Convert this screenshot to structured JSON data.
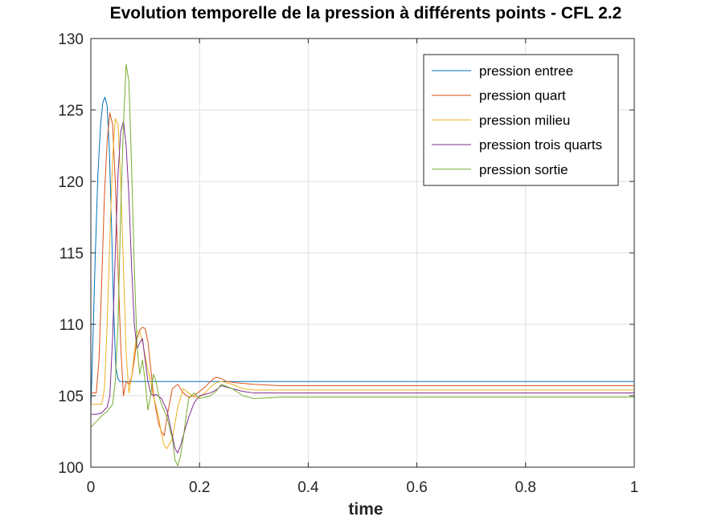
{
  "chart_data": {
    "type": "line",
    "title": "Evolution temporelle de la pression à différents points - CFL 2.2",
    "xlabel": "time",
    "ylabel": "",
    "xlim": [
      0,
      1
    ],
    "ylim": [
      100,
      130
    ],
    "xticks": [
      0,
      0.2,
      0.4,
      0.6,
      0.8,
      1
    ],
    "xtick_labels": [
      "0",
      "0.2",
      "0.4",
      "0.6",
      "0.8",
      "1"
    ],
    "yticks": [
      100,
      105,
      110,
      115,
      120,
      125,
      130
    ],
    "ytick_labels": [
      "100",
      "105",
      "110",
      "115",
      "120",
      "125",
      "130"
    ],
    "grid": true,
    "legend_position": "top-right",
    "series": [
      {
        "name": "pression entree",
        "color": "#0072bd",
        "x": [
          0,
          0.003,
          0.008,
          0.013,
          0.018,
          0.022,
          0.026,
          0.03,
          0.034,
          0.038,
          0.042,
          0.046,
          0.05,
          0.053,
          0.06,
          0.1,
          0.2,
          0.5,
          1.0
        ],
        "y": [
          104.0,
          107.8,
          114.6,
          120.5,
          124.0,
          125.5,
          125.9,
          125.3,
          122.3,
          117.0,
          111.0,
          107.0,
          106.2,
          106.0,
          106.0,
          106.0,
          106.0,
          106.0,
          106.0
        ]
      },
      {
        "name": "pression quart",
        "color": "#d95319",
        "x": [
          0,
          0.01,
          0.015,
          0.02,
          0.025,
          0.03,
          0.035,
          0.04,
          0.045,
          0.05,
          0.055,
          0.06,
          0.065,
          0.07,
          0.075,
          0.08,
          0.085,
          0.09,
          0.095,
          0.1,
          0.105,
          0.11,
          0.115,
          0.12,
          0.125,
          0.13,
          0.135,
          0.14,
          0.15,
          0.16,
          0.17,
          0.18,
          0.19,
          0.2,
          0.21,
          0.22,
          0.23,
          0.24,
          0.25,
          0.27,
          0.3,
          0.35,
          0.4,
          0.5,
          1.0
        ],
        "y": [
          105.2,
          105.2,
          107.5,
          113.0,
          119.0,
          122.8,
          124.8,
          124.0,
          120.0,
          114.0,
          108.5,
          105.0,
          106.0,
          105.8,
          106.3,
          107.5,
          109.0,
          109.6,
          109.8,
          109.7,
          108.8,
          107.0,
          105.2,
          104.0,
          103.0,
          102.5,
          102.2,
          103.5,
          105.5,
          105.8,
          105.2,
          104.9,
          105.0,
          105.3,
          105.6,
          106.0,
          106.3,
          106.2,
          106.0,
          105.9,
          105.8,
          105.7,
          105.7,
          105.7,
          105.7
        ]
      },
      {
        "name": "pression milieu",
        "color": "#edb120",
        "x": [
          0,
          0.02,
          0.025,
          0.03,
          0.035,
          0.04,
          0.045,
          0.05,
          0.055,
          0.06,
          0.065,
          0.07,
          0.075,
          0.08,
          0.085,
          0.09,
          0.095,
          0.1,
          0.105,
          0.11,
          0.115,
          0.12,
          0.125,
          0.13,
          0.135,
          0.14,
          0.15,
          0.16,
          0.17,
          0.18,
          0.19,
          0.2,
          0.21,
          0.22,
          0.23,
          0.24,
          0.26,
          0.28,
          0.3,
          0.35,
          0.4,
          0.5,
          1.0
        ],
        "y": [
          104.4,
          104.4,
          105.5,
          110.0,
          116.0,
          121.5,
          124.4,
          124.0,
          120.0,
          114.0,
          108.0,
          105.2,
          106.3,
          108.0,
          109.5,
          109.5,
          108.8,
          107.8,
          106.8,
          106.0,
          105.0,
          104.3,
          103.5,
          102.3,
          101.5,
          101.3,
          102.0,
          104.2,
          105.5,
          105.2,
          104.9,
          104.9,
          105.2,
          105.6,
          105.9,
          106.0,
          105.8,
          105.5,
          105.4,
          105.4,
          105.4,
          105.4,
          105.4
        ]
      },
      {
        "name": "pression trois quarts",
        "color": "#7e2f8e",
        "x": [
          0,
          0.01,
          0.02,
          0.03,
          0.035,
          0.04,
          0.045,
          0.05,
          0.055,
          0.06,
          0.065,
          0.07,
          0.075,
          0.08,
          0.085,
          0.09,
          0.095,
          0.1,
          0.105,
          0.11,
          0.115,
          0.12,
          0.13,
          0.14,
          0.15,
          0.155,
          0.16,
          0.165,
          0.17,
          0.18,
          0.19,
          0.2,
          0.21,
          0.22,
          0.23,
          0.24,
          0.26,
          0.28,
          0.3,
          0.35,
          0.4,
          0.5,
          1.0
        ],
        "y": [
          103.7,
          103.7,
          103.8,
          104.2,
          105.0,
          109.0,
          115.0,
          120.5,
          123.5,
          124.2,
          122.5,
          119.0,
          114.0,
          110.0,
          108.3,
          108.7,
          109.0,
          107.5,
          106.0,
          105.2,
          105.0,
          105.1,
          104.8,
          104.0,
          102.2,
          101.3,
          101.0,
          101.5,
          102.2,
          103.5,
          104.5,
          105.0,
          105.1,
          105.2,
          105.4,
          105.7,
          105.5,
          105.3,
          105.2,
          105.2,
          105.2,
          105.2,
          105.2
        ]
      },
      {
        "name": "pression sortie",
        "color": "#77ac30",
        "x": [
          0,
          0.01,
          0.02,
          0.03,
          0.04,
          0.045,
          0.05,
          0.055,
          0.06,
          0.065,
          0.07,
          0.075,
          0.08,
          0.085,
          0.09,
          0.095,
          0.1,
          0.105,
          0.11,
          0.115,
          0.12,
          0.125,
          0.13,
          0.14,
          0.15,
          0.155,
          0.16,
          0.165,
          0.17,
          0.175,
          0.18,
          0.19,
          0.2,
          0.21,
          0.22,
          0.23,
          0.24,
          0.26,
          0.28,
          0.3,
          0.35,
          0.4,
          0.5,
          1.0
        ],
        "y": [
          102.8,
          103.2,
          103.6,
          103.9,
          104.4,
          106.0,
          110.0,
          118.0,
          124.0,
          128.2,
          127.0,
          121.0,
          114.0,
          108.5,
          106.5,
          107.5,
          106.0,
          104.0,
          105.0,
          106.5,
          106.0,
          105.0,
          104.4,
          103.5,
          102.0,
          100.5,
          100.1,
          100.8,
          102.0,
          103.5,
          104.8,
          105.2,
          104.8,
          104.9,
          105.0,
          105.3,
          105.8,
          105.5,
          105.0,
          104.8,
          104.9,
          104.9,
          104.9,
          104.9
        ]
      }
    ]
  }
}
